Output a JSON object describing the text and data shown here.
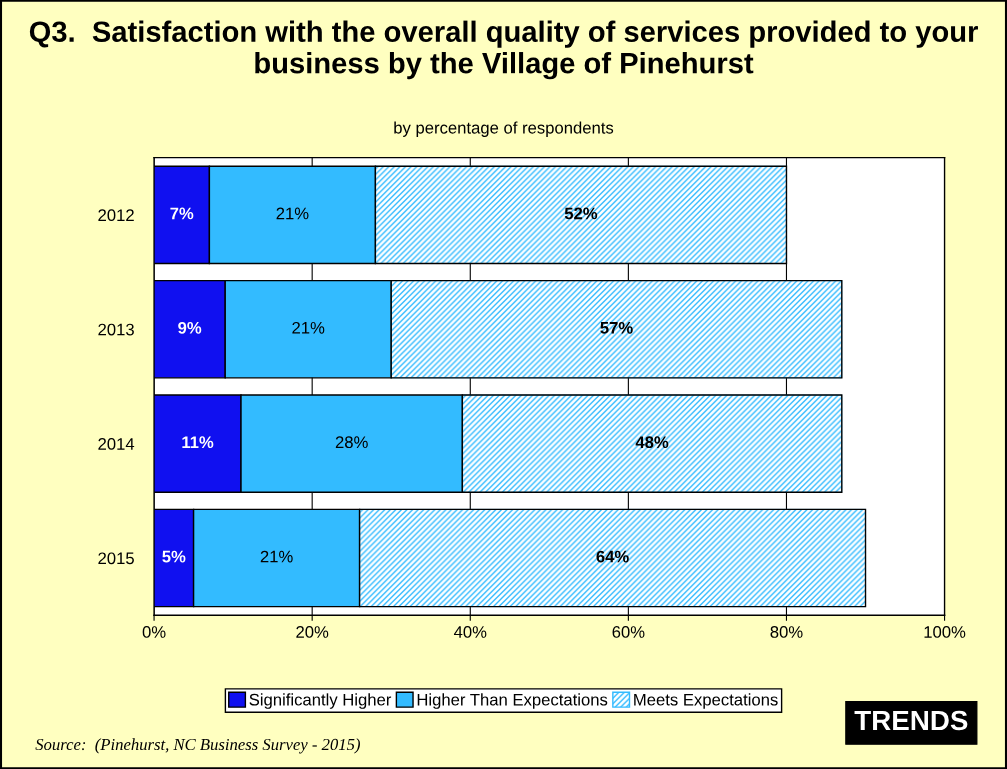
{
  "chart_data": {
    "type": "bar",
    "orientation": "horizontal",
    "stacked": true,
    "title": "Q3.  Satisfaction with the overall quality of services provided to your business by the Village of Pinehurst",
    "subtitle": "by percentage of respondents",
    "categories": [
      "2012",
      "2013",
      "2014",
      "2015"
    ],
    "series": [
      {
        "name": "Significantly Higher",
        "color": "#1010f0",
        "values": [
          7,
          9,
          11,
          5
        ],
        "value_labels": [
          "7%",
          "9%",
          "11%",
          "5%"
        ]
      },
      {
        "name": "Higher Than Expectations",
        "color": "#33bbff",
        "values": [
          21,
          21,
          28,
          21
        ],
        "value_labels": [
          "21%",
          "21%",
          "28%",
          "21%"
        ]
      },
      {
        "name": "Meets Expectations",
        "color": "#33bbff",
        "values": [
          52,
          57,
          48,
          64
        ],
        "value_labels": [
          "52%",
          "57%",
          "48%",
          "64%"
        ]
      }
    ],
    "xlim": [
      0,
      100
    ],
    "xticks": [
      {
        "value": 0,
        "label": "0%"
      },
      {
        "value": 20,
        "label": "20%"
      },
      {
        "value": 40,
        "label": "40%"
      },
      {
        "value": 60,
        "label": "60%"
      },
      {
        "value": 80,
        "label": "80%"
      },
      {
        "value": 100,
        "label": "100%"
      }
    ],
    "grid": "x",
    "legend": "bottom",
    "annotations": [
      "Source:  (Pinehurst, NC Business Survey - 2015)",
      "TRENDS"
    ]
  }
}
